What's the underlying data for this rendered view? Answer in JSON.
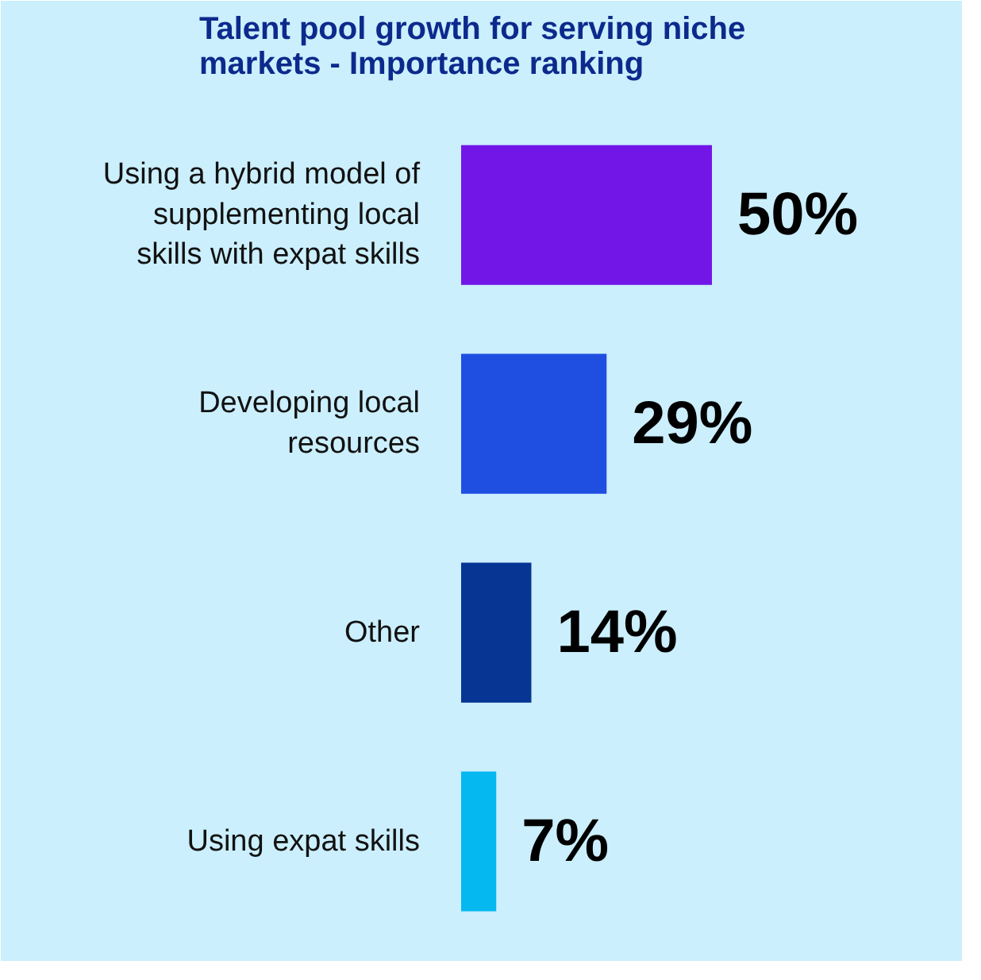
{
  "chart_data": {
    "type": "bar",
    "orientation": "horizontal",
    "title": "Talent pool growth for serving niche markets - Importance ranking",
    "categories": [
      "Using a hybrid model of supplementing local skills with expat skills",
      "Developing local resources",
      "Other",
      "Using expat skills"
    ],
    "values": [
      50,
      29,
      14,
      7
    ],
    "colors": [
      "#7216e8",
      "#1f4fe0",
      "#063593",
      "#05b8f0"
    ],
    "value_labels": [
      "50%",
      "29%",
      "14%",
      "7%"
    ],
    "grid": false
  }
}
